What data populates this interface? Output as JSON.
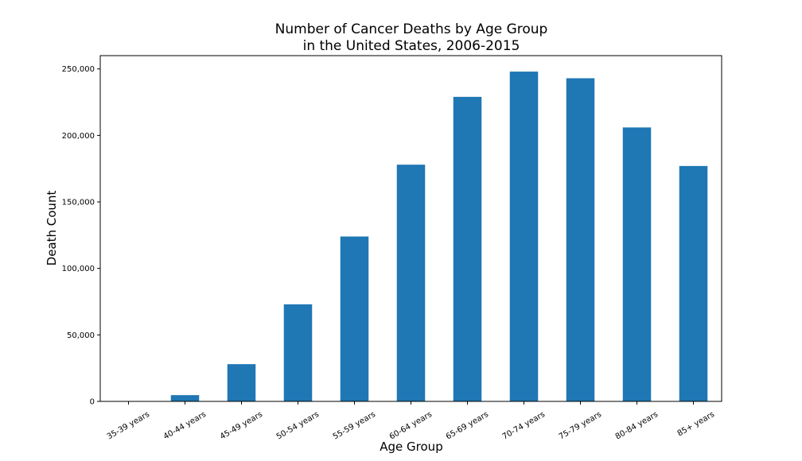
{
  "chart_data": {
    "type": "bar",
    "title_lines": [
      "Number of Cancer Deaths by Age Group",
      "in the United States, 2006-2015"
    ],
    "xlabel": "Age Group",
    "ylabel": "Death Count",
    "categories": [
      "35-39 years",
      "40-44 years",
      "45-49 years",
      "50-54 years",
      "55-59 years",
      "60-64 years",
      "65-69 years",
      "70-74 years",
      "75-79 years",
      "80-84 years",
      "85+ years"
    ],
    "values": [
      300,
      4700,
      28000,
      73000,
      124000,
      178000,
      229000,
      248000,
      243000,
      206000,
      177000
    ],
    "ylim": [
      0,
      260000
    ],
    "yticks": [
      0,
      50000,
      100000,
      150000,
      200000,
      250000
    ],
    "ytick_labels": [
      "0",
      "50,000",
      "100,000",
      "150,000",
      "200,000",
      "250,000"
    ],
    "bar_color": "#1f77b4",
    "grid": false,
    "legend": "none"
  }
}
